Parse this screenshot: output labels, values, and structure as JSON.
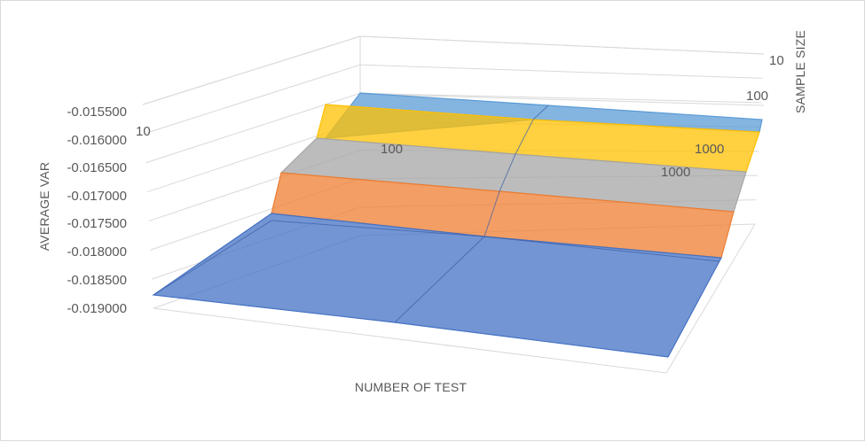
{
  "chart_data": {
    "type": "surface",
    "title": "",
    "xlabel": "NUMBER OF TEST",
    "ylabel": "SAMPLE SIZE",
    "zlabel": "AVERAGE VAR",
    "x_categories": [
      "10",
      "100",
      "1000"
    ],
    "y_categories": [
      "10",
      "100",
      "1000"
    ],
    "z_ticks": [
      "-0.015500",
      "-0.016000",
      "-0.016500",
      "-0.017000",
      "-0.017500",
      "-0.018000",
      "-0.018500",
      "-0.019000"
    ],
    "zlim": [
      -0.019,
      -0.0155
    ],
    "grid": true,
    "band_colors": [
      "#4472c4",
      "#ed7d31",
      "#a5a5a5",
      "#ffc000",
      "#5b9bd5"
    ]
  }
}
